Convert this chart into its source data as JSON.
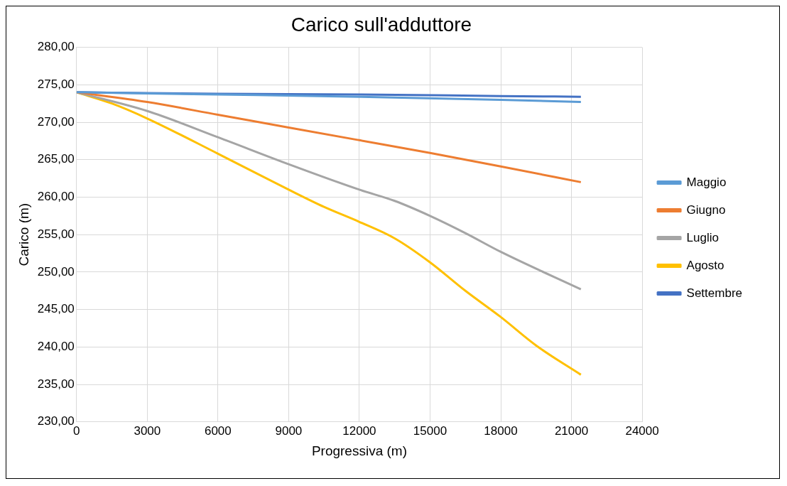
{
  "chart_data": {
    "type": "line",
    "title": "Carico sull'adduttore",
    "xlabel": "Progressiva (m)",
    "ylabel": "Carico (m)",
    "xlim": [
      0,
      24000
    ],
    "xticks": [
      0,
      3000,
      6000,
      9000,
      12000,
      15000,
      18000,
      21000,
      24000
    ],
    "ylim": [
      230,
      280
    ],
    "yticks": [
      {
        "value": 230,
        "label": "230,00"
      },
      {
        "value": 235,
        "label": "235,00"
      },
      {
        "value": 240,
        "label": "240,00"
      },
      {
        "value": 245,
        "label": "245,00"
      },
      {
        "value": 250,
        "label": "250,00"
      },
      {
        "value": 255,
        "label": "255,00"
      },
      {
        "value": 260,
        "label": "260,00"
      },
      {
        "value": 265,
        "label": "265,00"
      },
      {
        "value": 270,
        "label": "270,00"
      },
      {
        "value": 275,
        "label": "275,00"
      },
      {
        "value": 280,
        "label": "280,00"
      }
    ],
    "grid": true,
    "legend": "right",
    "marker": "none",
    "line_style": "solid",
    "series": [
      {
        "name": "Maggio",
        "color": "#5b9bd5",
        "x": [
          0,
          6000,
          12000,
          18000,
          21400
        ],
        "values": [
          274,
          273.7,
          273.4,
          273,
          272.7
        ]
      },
      {
        "name": "Giugno",
        "color": "#ed7d31",
        "x": [
          0,
          3000,
          6000,
          9000,
          12000,
          15000,
          18000,
          21400
        ],
        "values": [
          274,
          272.7,
          271,
          269.3,
          267.6,
          265.9,
          264.1,
          262
        ]
      },
      {
        "name": "Luglio",
        "color": "#a5a5a5",
        "x": [
          0,
          3000,
          6000,
          9000,
          12000,
          13500,
          15000,
          16500,
          18000,
          21400
        ],
        "values": [
          274,
          271.5,
          268,
          264.4,
          261,
          259.5,
          257.5,
          255.2,
          252.7,
          247.7
        ]
      },
      {
        "name": "Agosto",
        "color": "#ffc000",
        "x": [
          0,
          1500,
          3000,
          6000,
          9000,
          10500,
          12000,
          13500,
          15000,
          16500,
          18000,
          19500,
          21400
        ],
        "values": [
          274,
          272.5,
          270.5,
          265.8,
          261,
          258.7,
          256.7,
          254.5,
          251.3,
          247.5,
          244,
          240.2,
          236.3
        ]
      },
      {
        "name": "Settembre",
        "color": "#4472c4",
        "x": [
          0,
          6000,
          12000,
          18000,
          21400
        ],
        "values": [
          274,
          273.8,
          273.7,
          273.5,
          273.4
        ]
      }
    ]
  }
}
